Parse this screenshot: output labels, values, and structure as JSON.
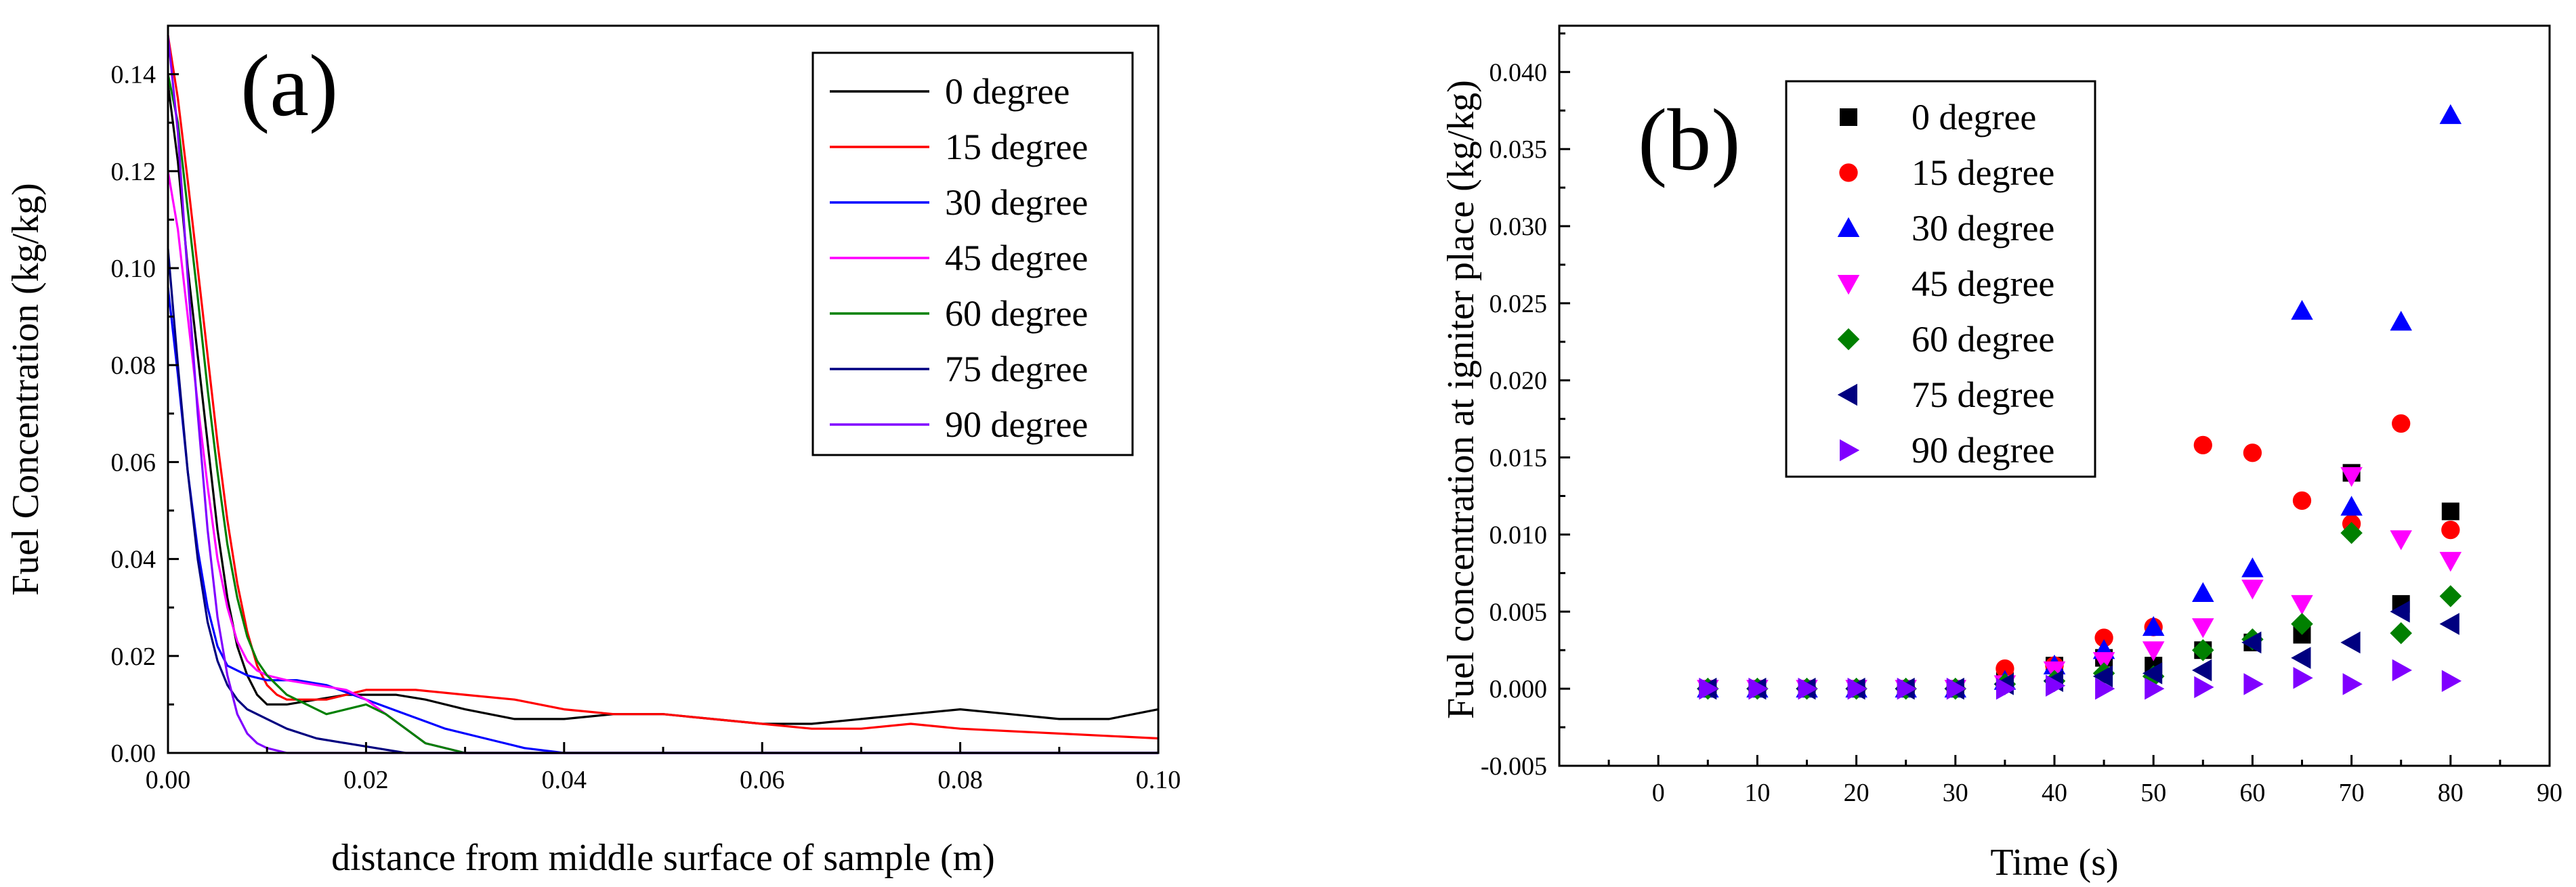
{
  "chart_data": [
    {
      "type": "line",
      "panel_label": "(a)",
      "xlabel": "distance from middle surface of sample (m)",
      "ylabel": "Fuel Concentration (kg/kg)",
      "xlim": [
        0,
        0.1
      ],
      "ylim": [
        0,
        0.15
      ],
      "xticks": [
        0,
        0.02,
        0.04,
        0.06,
        0.08,
        0.1
      ],
      "xtick_labels": [
        "0.00",
        "0.02",
        "0.04",
        "0.06",
        "0.08",
        "0.10"
      ],
      "yticks": [
        0,
        0.02,
        0.04,
        0.06,
        0.08,
        0.1,
        0.12,
        0.14
      ],
      "ytick_labels": [
        "0.00",
        "0.02",
        "0.04",
        "0.06",
        "0.08",
        "0.10",
        "0.12",
        "0.14"
      ],
      "legend_position": "top-right",
      "series": [
        {
          "name": "0  degree",
          "color": "#000000",
          "x": [
            0,
            0.001,
            0.002,
            0.003,
            0.004,
            0.005,
            0.006,
            0.007,
            0.008,
            0.009,
            0.01,
            0.012,
            0.015,
            0.018,
            0.02,
            0.023,
            0.026,
            0.03,
            0.035,
            0.04,
            0.045,
            0.05,
            0.055,
            0.06,
            0.065,
            0.07,
            0.075,
            0.08,
            0.085,
            0.09,
            0.095,
            0.1
          ],
          "y": [
            0.138,
            0.122,
            0.1,
            0.082,
            0.064,
            0.046,
            0.032,
            0.022,
            0.016,
            0.012,
            0.01,
            0.01,
            0.011,
            0.012,
            0.012,
            0.012,
            0.011,
            0.009,
            0.007,
            0.007,
            0.008,
            0.008,
            0.007,
            0.006,
            0.006,
            0.007,
            0.008,
            0.009,
            0.008,
            0.007,
            0.007,
            0.009
          ]
        },
        {
          "name": "15 degree",
          "color": "#ff0000",
          "x": [
            0,
            0.001,
            0.002,
            0.003,
            0.004,
            0.005,
            0.006,
            0.007,
            0.008,
            0.009,
            0.01,
            0.011,
            0.012,
            0.014,
            0.016,
            0.018,
            0.02,
            0.022,
            0.025,
            0.03,
            0.035,
            0.04,
            0.045,
            0.05,
            0.055,
            0.06,
            0.065,
            0.07,
            0.075,
            0.08,
            0.09,
            0.1
          ],
          "y": [
            0.148,
            0.135,
            0.118,
            0.1,
            0.082,
            0.064,
            0.048,
            0.035,
            0.025,
            0.018,
            0.014,
            0.012,
            0.011,
            0.011,
            0.011,
            0.012,
            0.013,
            0.013,
            0.013,
            0.012,
            0.011,
            0.009,
            0.008,
            0.008,
            0.007,
            0.006,
            0.005,
            0.005,
            0.006,
            0.005,
            0.004,
            0.003
          ]
        },
        {
          "name": "30 degree",
          "color": "#0000ff",
          "x": [
            0,
            0.001,
            0.002,
            0.003,
            0.004,
            0.005,
            0.006,
            0.008,
            0.01,
            0.013,
            0.016,
            0.02,
            0.024,
            0.028,
            0.032,
            0.036,
            0.04,
            0.045,
            0.05,
            0.06,
            0.07,
            0.08,
            0.09,
            0.1
          ],
          "y": [
            0.096,
            0.078,
            0.058,
            0.042,
            0.03,
            0.022,
            0.018,
            0.016,
            0.015,
            0.015,
            0.014,
            0.011,
            0.008,
            0.005,
            0.003,
            0.001,
            0.0,
            0.0,
            0.0,
            0.0,
            0.0,
            0.0,
            0.0,
            0.0
          ]
        },
        {
          "name": "45 degree",
          "color": "#ff00ff",
          "x": [
            0,
            0.001,
            0.002,
            0.003,
            0.004,
            0.005,
            0.006,
            0.007,
            0.008,
            0.009,
            0.01,
            0.012,
            0.015,
            0.018,
            0.02,
            0.022,
            0.024,
            0.026,
            0.028,
            0.03,
            0.04,
            0.05,
            0.06,
            0.08,
            0.1
          ],
          "y": [
            0.12,
            0.108,
            0.09,
            0.072,
            0.055,
            0.04,
            0.03,
            0.023,
            0.019,
            0.017,
            0.016,
            0.015,
            0.014,
            0.013,
            0.011,
            0.008,
            0.005,
            0.002,
            0.001,
            0.0,
            0.0,
            0.0,
            0.0,
            0.0,
            0.0
          ]
        },
        {
          "name": "60 degree",
          "color": "#008000",
          "x": [
            0,
            0.001,
            0.002,
            0.003,
            0.004,
            0.005,
            0.006,
            0.007,
            0.008,
            0.009,
            0.01,
            0.011,
            0.012,
            0.014,
            0.016,
            0.018,
            0.02,
            0.022,
            0.024,
            0.026,
            0.03,
            0.04,
            0.06,
            0.08,
            0.1
          ],
          "y": [
            0.14,
            0.13,
            0.112,
            0.094,
            0.075,
            0.058,
            0.043,
            0.032,
            0.024,
            0.019,
            0.016,
            0.014,
            0.012,
            0.01,
            0.008,
            0.009,
            0.01,
            0.008,
            0.005,
            0.002,
            0.0,
            0.0,
            0.0,
            0.0,
            0.0
          ]
        },
        {
          "name": "75 degree",
          "color": "#000080",
          "x": [
            0,
            0.001,
            0.002,
            0.003,
            0.004,
            0.005,
            0.006,
            0.007,
            0.008,
            0.01,
            0.012,
            0.015,
            0.018,
            0.021,
            0.024,
            0.027,
            0.03,
            0.04,
            0.06,
            0.08,
            0.1
          ],
          "y": [
            0.104,
            0.08,
            0.058,
            0.04,
            0.027,
            0.019,
            0.014,
            0.011,
            0.009,
            0.007,
            0.005,
            0.003,
            0.002,
            0.001,
            0.0,
            0.0,
            0.0,
            0.0,
            0.0,
            0.0,
            0.0
          ]
        },
        {
          "name": "90 degree",
          "color": "#8000ff",
          "x": [
            0,
            0.001,
            0.002,
            0.003,
            0.004,
            0.005,
            0.006,
            0.007,
            0.008,
            0.009,
            0.01,
            0.012,
            0.015,
            0.02,
            0.03,
            0.05,
            0.1
          ],
          "y": [
            0.148,
            0.128,
            0.098,
            0.07,
            0.046,
            0.028,
            0.016,
            0.008,
            0.004,
            0.002,
            0.001,
            0.0,
            0.0,
            0.0,
            0.0,
            0.0,
            0.0
          ]
        }
      ]
    },
    {
      "type": "scatter",
      "panel_label": "(b)",
      "xlabel": "Time (s)",
      "ylabel": "Fuel concentration at igniter place (kg/kg)",
      "xlim": [
        -10,
        90
      ],
      "ylim": [
        -0.005,
        0.043
      ],
      "xticks": [
        0,
        10,
        20,
        30,
        40,
        50,
        60,
        70,
        80,
        90
      ],
      "xtick_labels": [
        "0",
        "10",
        "20",
        "30",
        "40",
        "50",
        "60",
        "70",
        "80",
        "90"
      ],
      "yticks": [
        -0.005,
        0,
        0.005,
        0.01,
        0.015,
        0.02,
        0.025,
        0.03,
        0.035,
        0.04
      ],
      "ytick_labels": [
        "-0.005",
        "0.000",
        "0.005",
        "0.010",
        "0.015",
        "0.020",
        "0.025",
        "0.030",
        "0.035",
        "0.040"
      ],
      "legend_position": "top-left",
      "x": [
        5,
        10,
        15,
        20,
        25,
        30,
        35,
        40,
        45,
        50,
        55,
        60,
        65,
        70,
        75,
        80
      ],
      "series": [
        {
          "name": "0  degree",
          "color": "#000000",
          "marker": "square",
          "values": [
            0,
            0,
            0,
            0,
            0,
            0,
            0.0005,
            0.0015,
            0.002,
            0.0015,
            0.0025,
            0.003,
            0.0035,
            0.014,
            0.0055,
            0.0115
          ]
        },
        {
          "name": "15 degree",
          "color": "#ff0000",
          "marker": "circle",
          "values": [
            0,
            0,
            0,
            0,
            0,
            0,
            0.0013,
            0.0015,
            0.0033,
            0.004,
            0.0158,
            0.0153,
            0.0122,
            0.0107,
            0.0172,
            0.0103
          ]
        },
        {
          "name": "30 degree",
          "color": "#0000ff",
          "marker": "triangle-up",
          "values": [
            0,
            0,
            0,
            0,
            0,
            0,
            0.0005,
            0.0015,
            0.0025,
            0.004,
            0.0062,
            0.0078,
            0.0245,
            0.0118,
            0.0238,
            0.0372
          ]
        },
        {
          "name": "45 degree",
          "color": "#ff00ff",
          "marker": "triangle-down",
          "values": [
            0,
            0,
            0,
            0,
            0,
            0,
            0.0003,
            0.0012,
            0.0018,
            0.0025,
            0.004,
            0.0065,
            0.0055,
            0.0138,
            0.0097,
            0.0083
          ]
        },
        {
          "name": "60 degree",
          "color": "#008000",
          "marker": "diamond",
          "values": [
            0,
            0,
            0,
            0,
            0,
            0,
            0.0003,
            0.0005,
            0.001,
            0.0008,
            0.0025,
            0.0032,
            0.0042,
            0.0101,
            0.0036,
            0.006
          ]
        },
        {
          "name": "75 degree",
          "color": "#000080",
          "marker": "triangle-left",
          "values": [
            0,
            0,
            0,
            0,
            0,
            0,
            0.0003,
            0.0005,
            0.0008,
            0.001,
            0.0012,
            0.003,
            0.002,
            0.003,
            0.005,
            0.0042
          ]
        },
        {
          "name": "90 degree",
          "color": "#8000ff",
          "marker": "triangle-right",
          "values": [
            0,
            0,
            0,
            0,
            0,
            0,
            0,
            0.0002,
            0,
            0,
            0.0001,
            0.0003,
            0.0007,
            0.0003,
            0.0012,
            0.0005
          ]
        }
      ]
    }
  ]
}
